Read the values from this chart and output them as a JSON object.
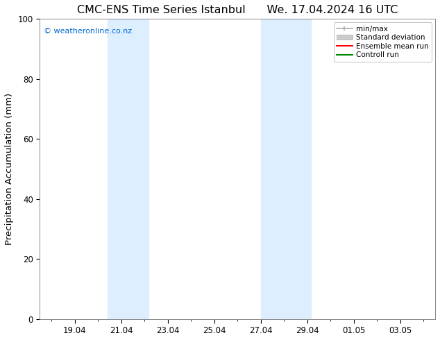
{
  "title": "CMC-ENS Time Series Istanbul      We. 17.04.2024 16 UTC",
  "ylabel": "Precipitation Accumulation (mm)",
  "ylim": [
    0,
    100
  ],
  "yticks": [
    0,
    20,
    40,
    60,
    80,
    100
  ],
  "copyright_text": "© weatheronline.co.nz",
  "copyright_color": "#0066cc",
  "background_color": "#ffffff",
  "plot_bg_color": "#ffffff",
  "shaded_regions": [
    {
      "xstart": 20.417,
      "xend": 22.167,
      "color": "#ddeeff"
    },
    {
      "xstart": 27.0,
      "xend": 29.167,
      "color": "#ddeeff"
    }
  ],
  "legend_entries": [
    {
      "label": "min/max",
      "type": "minmax",
      "color": "#aaaaaa"
    },
    {
      "label": "Standard deviation",
      "type": "patch",
      "color": "#cccccc"
    },
    {
      "label": "Ensemble mean run",
      "type": "line",
      "color": "#ff0000"
    },
    {
      "label": "Controll run",
      "type": "line",
      "color": "#008800"
    }
  ],
  "xtick_labels": [
    "19.04",
    "21.04",
    "23.04",
    "25.04",
    "27.04",
    "29.04",
    "01.05",
    "03.05"
  ],
  "xtick_positions": [
    19,
    21,
    23,
    25,
    27,
    29,
    31,
    33
  ],
  "xmin": 17.5,
  "xmax": 34.5,
  "title_fontsize": 11.5,
  "tick_fontsize": 8.5,
  "label_fontsize": 9.5,
  "legend_fontsize": 7.5,
  "copyright_fontsize": 8
}
